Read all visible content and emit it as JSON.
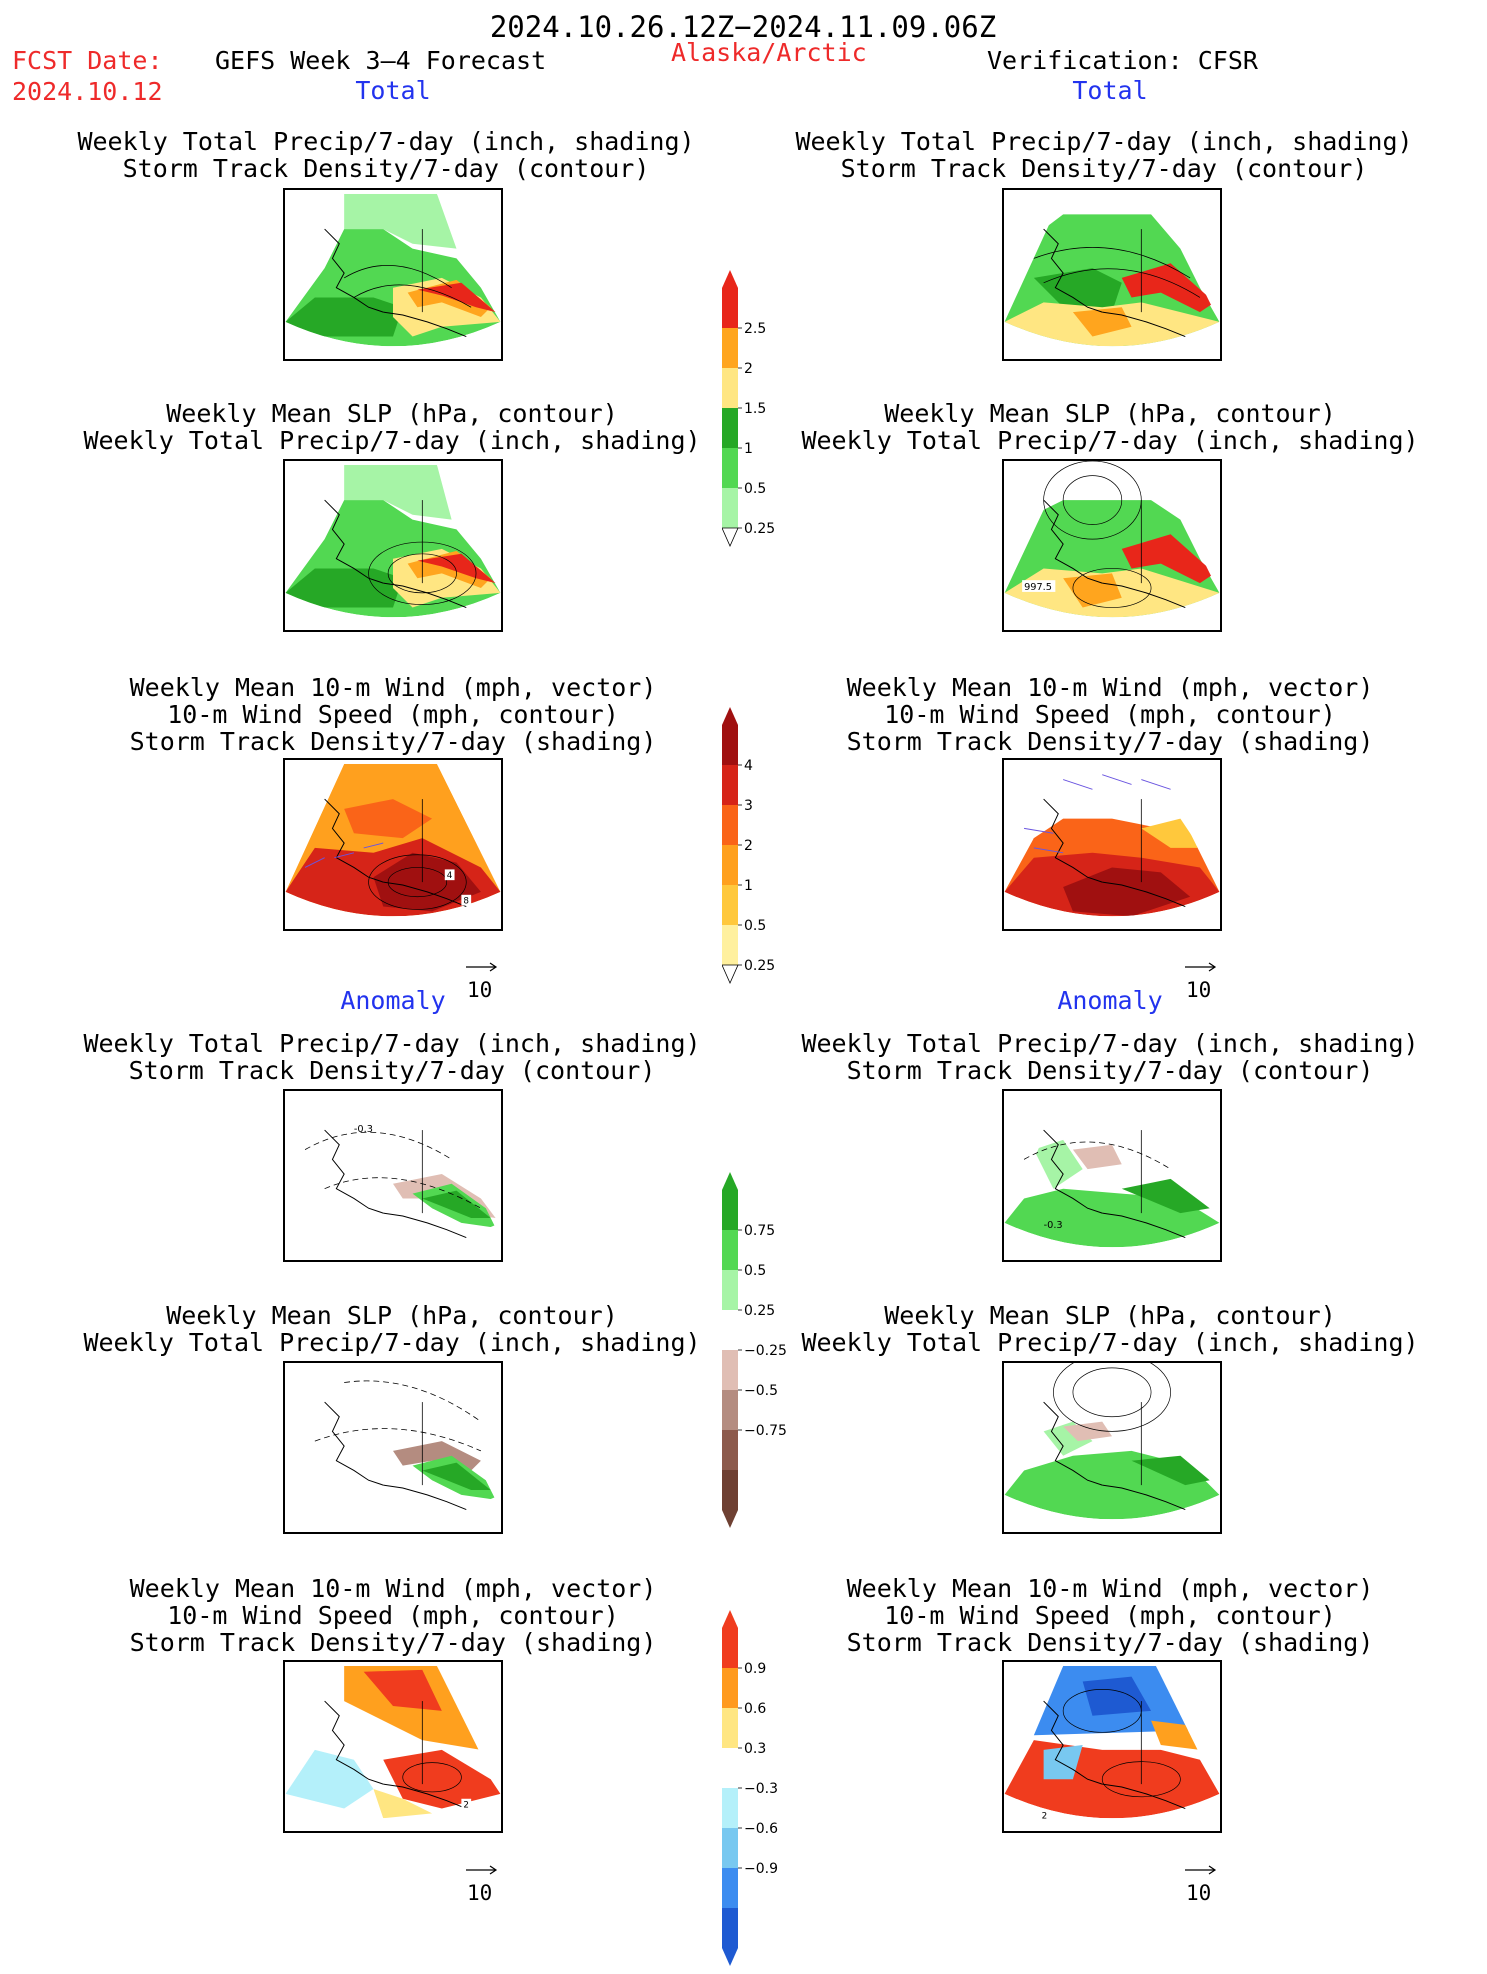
{
  "header": {
    "date_range": "2024.10.26.12Z−2024.11.09.06Z",
    "fcst_label": "FCST Date:",
    "fcst_date": "2024.10.12",
    "product": "GEFS Week 3–4 Forecast",
    "region": "Alaska/Arctic",
    "verification": "Verification: CFSR"
  },
  "sections": {
    "total_left": "Total",
    "total_right": "Total",
    "anomaly_left": "Anomaly",
    "anomaly_right": "Anomaly"
  },
  "panel_titles": {
    "precip_storm": [
      "Weekly Total Precip/7-day (inch, shading)",
      "Storm Track Density/7-day (contour)"
    ],
    "slp_precip": [
      "Weekly Mean SLP (hPa, contour)",
      "Weekly Total Precip/7-day (inch, shading)"
    ],
    "wind_storm": [
      "Weekly Mean 10-m Wind (mph, vector)",
      "10-m Wind Speed (mph, contour)",
      "Storm Track Density/7-day (shading)"
    ]
  },
  "panels": [
    {
      "id": "fcst-total-precip",
      "contour_label": ""
    },
    {
      "id": "verif-total-precip",
      "contour_label": ""
    },
    {
      "id": "fcst-total-slp",
      "contour_label": ""
    },
    {
      "id": "verif-total-slp",
      "contour_label": "997.5"
    },
    {
      "id": "fcst-total-wind",
      "contour_labels": [
        "4",
        "8"
      ]
    },
    {
      "id": "verif-total-wind",
      "contour_labels": []
    },
    {
      "id": "fcst-anom-precip",
      "contour_label": "-0.3"
    },
    {
      "id": "verif-anom-precip",
      "contour_label": "-0.3"
    },
    {
      "id": "fcst-anom-slp",
      "contour_label": ""
    },
    {
      "id": "verif-anom-slp",
      "contour_label": ""
    },
    {
      "id": "fcst-anom-wind",
      "contour_label": "2"
    },
    {
      "id": "verif-anom-wind",
      "contour_label": "2"
    }
  ],
  "vector_reference": "10",
  "colorbars": {
    "precip_total": {
      "labels": [
        "2.5",
        "2",
        "1.5",
        "1",
        "0.5",
        "0.25"
      ],
      "colors": [
        "#e8261a",
        "#ffa51e",
        "#ffe682",
        "#26a826",
        "#52d852",
        "#a6f4a6"
      ]
    },
    "storm_total": {
      "labels": [
        "4",
        "3",
        "2",
        "1",
        "0.5",
        "0.25"
      ],
      "colors": [
        "#a01010",
        "#d62418",
        "#fa6418",
        "#ffa01e",
        "#ffc83c",
        "#fff09e"
      ]
    },
    "precip_anom": {
      "labels": [
        "0.75",
        "0.5",
        "0.25",
        "−0.25",
        "−0.5",
        "−0.75"
      ],
      "colors": [
        "#26a826",
        "#52d852",
        "#a6f4a6",
        "#ffffff",
        "#e0beb4",
        "#b48c80",
        "#8c5a4c",
        "#6e4032"
      ]
    },
    "storm_anom": {
      "labels": [
        "0.9",
        "0.6",
        "0.3",
        "−0.3",
        "−0.6",
        "−0.9"
      ],
      "colors": [
        "#f03c1e",
        "#ff9a1e",
        "#ffe682",
        "#ffffff",
        "#b4f0fa",
        "#78c8f0",
        "#3c8cf0",
        "#1e5ad2"
      ]
    }
  }
}
